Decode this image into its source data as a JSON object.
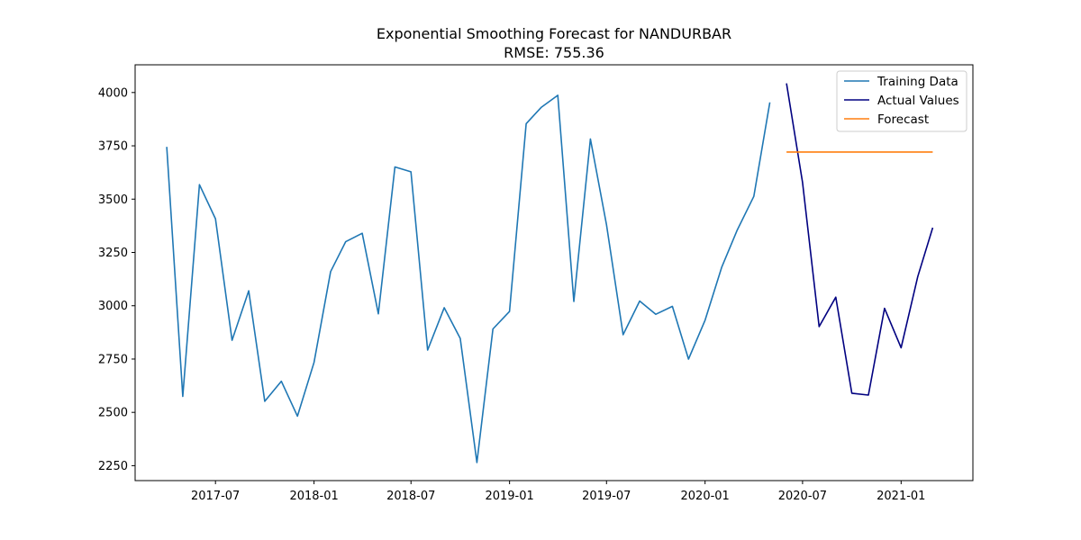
{
  "chart_data": {
    "type": "line",
    "title": "Exponential Smoothing Forecast for NANDURBAR",
    "subtitle": "RMSE: 755.36",
    "xlabel": "",
    "ylabel": "",
    "x_ticks": [
      "2017-07",
      "2018-01",
      "2018-07",
      "2019-01",
      "2019-07",
      "2020-01",
      "2020-07",
      "2021-01"
    ],
    "y_ticks": [
      2250,
      2500,
      2750,
      3000,
      3250,
      3500,
      3750,
      4000
    ],
    "xlim": [
      "2017-02-01",
      "2021-05-15"
    ],
    "ylim": [
      2180,
      4130
    ],
    "grid": false,
    "legend_position": "top-right",
    "colors": {
      "training": "#1f77b4",
      "actual": "#000080",
      "forecast": "#ff7f0e"
    },
    "series": [
      {
        "name": "Training Data",
        "color": "#1f77b4",
        "x": [
          "2017-04",
          "2017-05",
          "2017-06",
          "2017-07",
          "2017-08",
          "2017-09",
          "2017-10",
          "2017-11",
          "2017-12",
          "2018-01",
          "2018-02",
          "2018-03",
          "2018-04",
          "2018-05",
          "2018-06",
          "2018-07",
          "2018-08",
          "2018-09",
          "2018-10",
          "2018-11",
          "2018-12",
          "2019-01",
          "2019-02",
          "2019-03",
          "2019-04",
          "2019-05",
          "2019-06",
          "2019-07",
          "2019-08",
          "2019-09",
          "2019-10",
          "2019-11",
          "2019-12",
          "2020-01",
          "2020-02",
          "2020-03",
          "2020-04",
          "2020-05"
        ],
        "y": [
          3745,
          2575,
          3568,
          3408,
          2838,
          3070,
          2552,
          2646,
          2482,
          2734,
          3160,
          3300,
          3340,
          2962,
          3651,
          3628,
          2792,
          2991,
          2847,
          2265,
          2891,
          2973,
          3854,
          3930,
          3987,
          3020,
          3782,
          3379,
          2864,
          3022,
          2960,
          2997,
          2750,
          2932,
          3180,
          3355,
          3513,
          3954
        ]
      },
      {
        "name": "Actual Values",
        "color": "#000080",
        "x": [
          "2020-06",
          "2020-07",
          "2020-08",
          "2020-09",
          "2020-10",
          "2020-11",
          "2020-12",
          "2021-01",
          "2021-02",
          "2021-03"
        ],
        "y": [
          4043,
          3578,
          2902,
          3040,
          2590,
          2581,
          2988,
          2803,
          3137,
          3366
        ]
      },
      {
        "name": "Forecast",
        "color": "#ff7f0e",
        "x": [
          "2020-06",
          "2020-07",
          "2020-08",
          "2020-09",
          "2020-10",
          "2020-11",
          "2020-12",
          "2021-01",
          "2021-02",
          "2021-03"
        ],
        "y": [
          3721,
          3721,
          3721,
          3721,
          3721,
          3721,
          3721,
          3721,
          3721,
          3721
        ]
      }
    ]
  }
}
